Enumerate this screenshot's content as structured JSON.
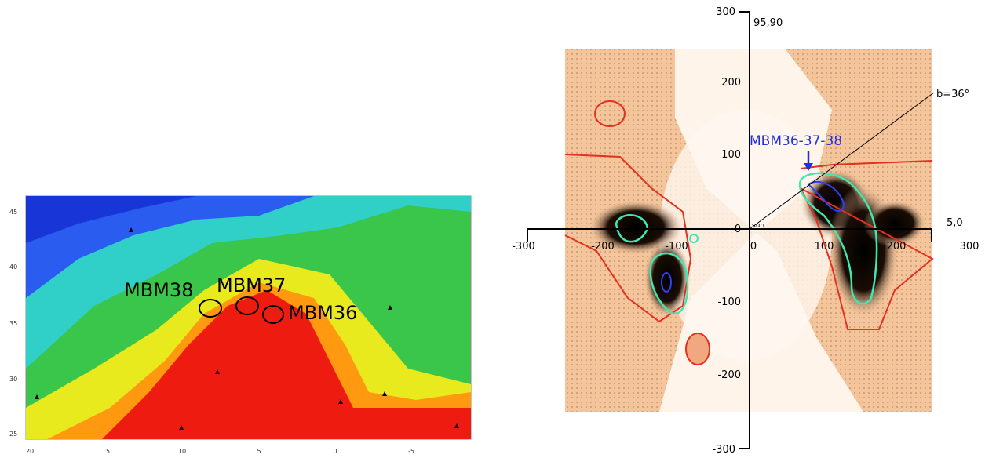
{
  "left_panel": {
    "labels": [
      "MBM38",
      "MBM37",
      "MBM36"
    ],
    "yticks": [
      45,
      40,
      35,
      30,
      25
    ],
    "xticks": [
      20,
      15,
      10,
      5,
      0,
      -5
    ]
  },
  "right_panel": {
    "corner_top": "95,90",
    "corner_right": "5,0",
    "origin": "sun",
    "latitude": "b=36°",
    "cloud": "MBM36-37-38",
    "xticks": [
      -300,
      -200,
      -100,
      0,
      100,
      200,
      300
    ],
    "yticks": [
      300,
      200,
      100,
      0,
      -100,
      -200,
      -300
    ]
  }
}
